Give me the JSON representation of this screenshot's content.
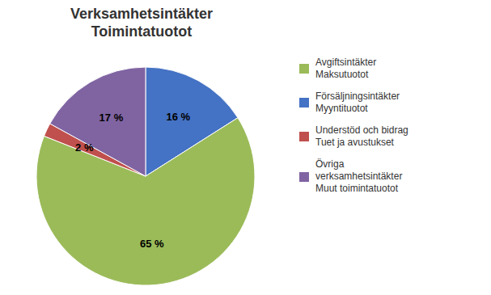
{
  "chart_data": {
    "type": "pie",
    "title": "Verksamhetsintäkter\nToimintatuotot",
    "categories": [
      "Försäljningsintäkter\nMyyntituotot",
      "Avgiftsintäkter\nMaksutuotot",
      "Understöd och bidrag\nTuet ja avustukset",
      "Övriga\nverksamhetsintäkter\nMuut toimintatuotot"
    ],
    "values": [
      16,
      65,
      2,
      17
    ],
    "value_labels": [
      "16 %",
      "65 %",
      "2 %",
      "17 %"
    ],
    "colors": [
      "#4472C4",
      "#9BBB59",
      "#C0504D",
      "#8064A2"
    ],
    "data_labels": true,
    "legend": "right"
  }
}
